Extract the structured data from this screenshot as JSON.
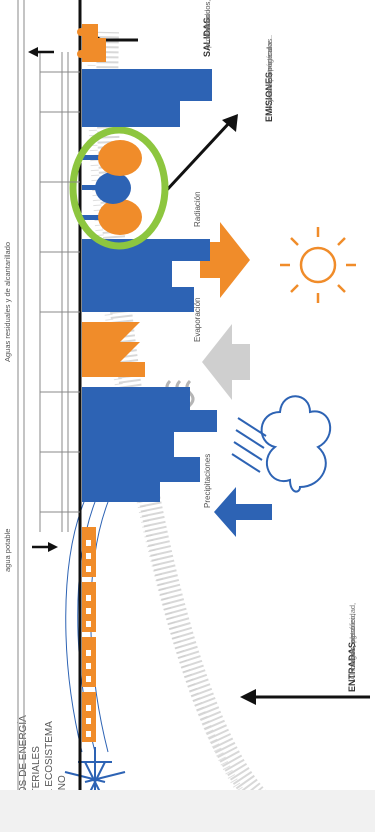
{
  "title_lines": [
    "FLUJOS DE ENERGÍA",
    "Y MATERIALES",
    "EN EL ECOSISTEMA",
    "URBANO"
  ],
  "entradas": {
    "label": "ENTRADAS",
    "details": [
      "Alimentos, electricidad,",
      "carbón, petróleo,",
      "gas, agua..."
    ]
  },
  "precipitaciones": "Precipitaciones",
  "evaporacion": "Evaporación",
  "radiacion": "Radiación",
  "emisiones": {
    "label": "EMISIONES",
    "details": [
      "óxidos de nitrógeno",
      "y azufre, partículas",
      "de plomo, calor..."
    ]
  },
  "salidas": {
    "label": "SALIDAS",
    "details": [
      "productos",
      "elaborados,",
      "residuos sólidos..."
    ]
  },
  "agua_potable": "agua potable",
  "aguas_residuales": "Aguas residuales y de alcantarillado",
  "colors": {
    "blue": "#2d63b4",
    "orange": "#f08c2a",
    "green": "#8dc63f",
    "grey": "#d3d3d3",
    "line": "#111111"
  }
}
